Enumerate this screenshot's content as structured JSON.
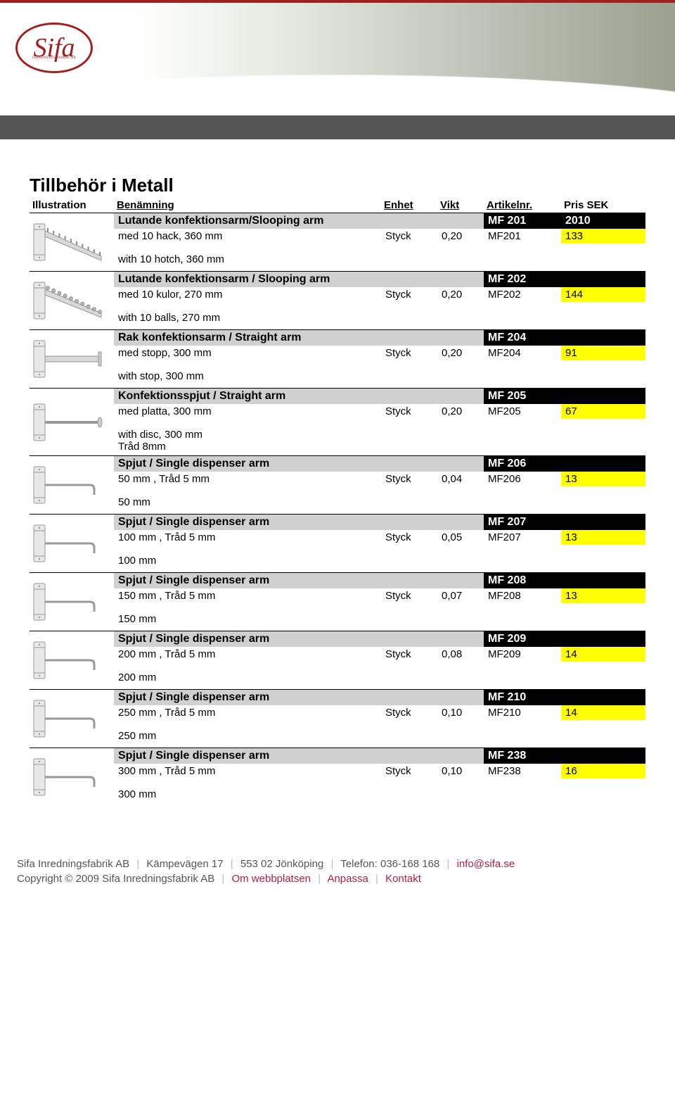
{
  "colors": {
    "topRule": "#a02020",
    "darkBar": "#555555",
    "groupNameBg": "#d0d0d0",
    "groupCodeBg": "#000000",
    "groupCodeFg": "#ffffff",
    "priceBg": "#ffff00",
    "footerText": "#555555",
    "footerSep": "#bbbbbb",
    "footerLink": "#aa2244",
    "logoColor": "#a02020"
  },
  "logo": {
    "text": "Sifa",
    "subtext": "INREDNINGSFABRIK AB"
  },
  "page": {
    "title": "Tillbehör i Metall"
  },
  "table": {
    "headers": {
      "illustration": "Illustration",
      "name": "Benämning",
      "unit": "Enhet",
      "weight": "Vikt",
      "article": "Artikelnr.",
      "price": "Pris SEK"
    },
    "items": [
      {
        "groupName": "Lutande konfektionsarm/Slooping arm",
        "groupCode": "MF 201",
        "groupPrice": "2010",
        "desc": "med 10 hack, 360 mm",
        "unit": "Styck",
        "weight": "0,20",
        "art": "MF201",
        "price": "133",
        "note": "with 10 hotch, 360 mm",
        "illType": "slope-hack"
      },
      {
        "groupName": "Lutande konfektionsarm / Slooping arm",
        "groupCode": "MF 202",
        "desc": "med 10 kulor, 270 mm",
        "unit": "Styck",
        "weight": "0,20",
        "art": "MF202",
        "price": "144",
        "note": "with 10 balls, 270 mm",
        "illType": "slope-ball"
      },
      {
        "groupName": "Rak konfektionsarm / Straight arm",
        "groupCode": "MF 204",
        "desc": "med stopp, 300 mm",
        "unit": "Styck",
        "weight": "0,20",
        "art": "MF204",
        "price": "91",
        "note": "with stop, 300 mm",
        "illType": "straight-stop"
      },
      {
        "groupName": "Konfektionsspjut / Straight arm",
        "groupCode": "MF 205",
        "desc": "med platta, 300 mm",
        "unit": "Styck",
        "weight": "0,20",
        "art": "MF205",
        "price": "67",
        "note": "with disc, 300 mm",
        "extra": "Tråd 8mm",
        "illType": "straight-disc"
      },
      {
        "groupName": "Spjut / Single dispenser arm",
        "groupCode": "MF 206",
        "desc": "50 mm , Tråd 5 mm",
        "unit": "Styck",
        "weight": "0,04",
        "art": "MF206",
        "price": "13",
        "note": "50 mm",
        "illType": "hook"
      },
      {
        "groupName": "Spjut / Single dispenser arm",
        "groupCode": "MF 207",
        "desc": "100 mm , Tråd 5 mm",
        "unit": "Styck",
        "weight": "0,05",
        "art": "MF207",
        "price": "13",
        "note": "100 mm",
        "illType": "hook"
      },
      {
        "groupName": "Spjut / Single dispenser arm",
        "groupCode": "MF 208",
        "desc": "150 mm , Tråd 5 mm",
        "unit": "Styck",
        "weight": "0,07",
        "art": "MF208",
        "price": "13",
        "note": "150 mm",
        "illType": "hook"
      },
      {
        "groupName": "Spjut / Single dispenser arm",
        "groupCode": "MF 209",
        "desc": "200 mm , Tråd 5 mm",
        "unit": "Styck",
        "weight": "0,08",
        "art": "MF209",
        "price": "14",
        "note": "200 mm",
        "illType": "hook"
      },
      {
        "groupName": "Spjut / Single dispenser arm",
        "groupCode": "MF 210",
        "desc": "250 mm , Tråd 5 mm",
        "unit": "Styck",
        "weight": "0,10",
        "art": "MF210",
        "price": "14",
        "note": "250 mm",
        "illType": "hook"
      },
      {
        "groupName": "Spjut / Single dispenser arm",
        "groupCode": "MF 238",
        "desc": "300 mm , Tråd 5 mm",
        "unit": "Styck",
        "weight": "0,10",
        "art": "MF238",
        "price": "16",
        "note": "300 mm",
        "illType": "hook"
      }
    ]
  },
  "footer": {
    "company": "Sifa Inredningsfabrik AB",
    "address": "Kämpevägen 17",
    "postal": "553 02 Jönköping",
    "phoneLabel": "Telefon:",
    "phone": "036-168 168",
    "email": "info@sifa.se",
    "copyright": "Copyright © 2009 Sifa Inredningsfabrik AB",
    "link1": "Om webbplatsen",
    "link2": "Anpassa",
    "link3": "Kontakt"
  }
}
